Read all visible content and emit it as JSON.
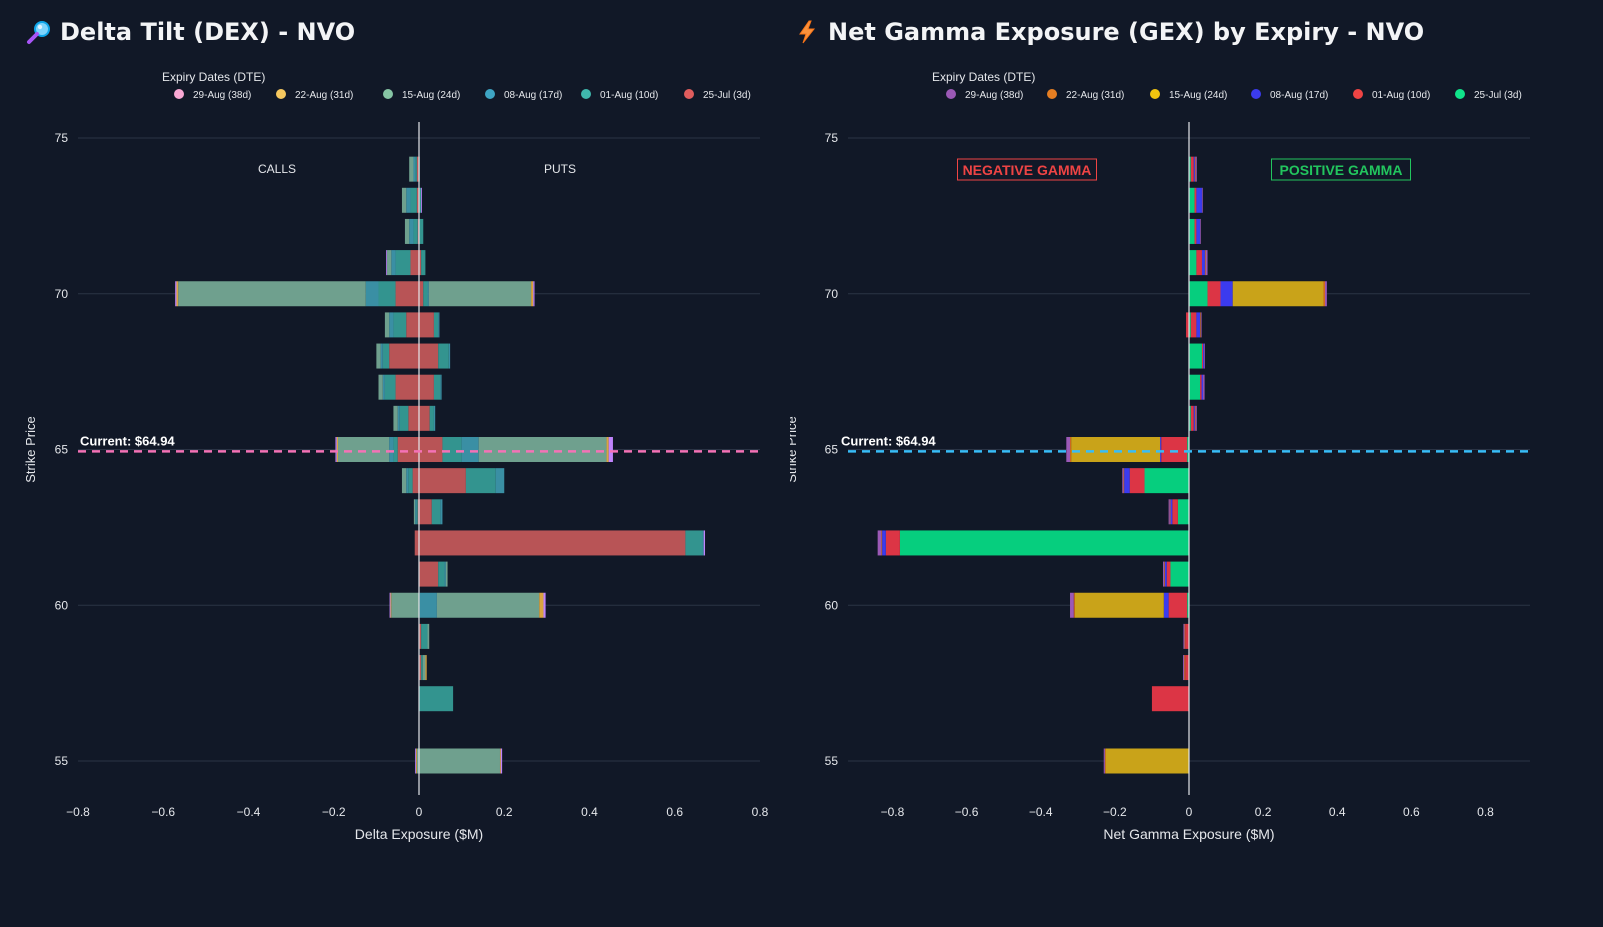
{
  "charts": [
    {
      "id": "dex",
      "title": "Delta Tilt (DEX) - NVO",
      "title_icon": "magnifier-icon",
      "legend_title": "Expiry Dates (DTE)",
      "xlabel": "Delta Exposure ($M)",
      "ylabel": "Strike Price",
      "current_label": "Current: $64.94",
      "current_price": 64.94,
      "current_line_color": "#f472b6",
      "left_annotation": "CALLS",
      "right_annotation": "PUTS"
    },
    {
      "id": "gex",
      "title": "Net Gamma Exposure (GEX) by Expiry - NVO",
      "title_icon": "lightning-icon",
      "legend_title": "Expiry Dates (DTE)",
      "xlabel": "Net Gamma Exposure ($M)",
      "ylabel": "Strike Price",
      "current_label": "Current: $64.94",
      "current_price": 64.94,
      "current_line_color": "#38bdf8",
      "left_annotation": "NEGATIVE GAMMA",
      "right_annotation": "POSITIVE GAMMA",
      "left_annotation_color": "#ef4444",
      "right_annotation_color": "#22c55e"
    }
  ],
  "chart_data": [
    {
      "type": "bar",
      "orientation": "horizontal",
      "stacked": true,
      "title": "Delta Tilt (DEX) - NVO",
      "xlabel": "Delta Exposure ($M)",
      "ylabel": "Strike Price",
      "xlim": [
        -0.8,
        0.8
      ],
      "xticks": [
        -0.8,
        -0.6,
        -0.4,
        -0.2,
        0,
        0.2,
        0.4,
        0.6,
        0.8
      ],
      "xtick_labels": [
        "−0.8",
        "−0.6",
        "−0.4",
        "−0.2",
        "0",
        "0.2",
        "0.4",
        "0.6",
        "0.8"
      ],
      "ylim": [
        54,
        76
      ],
      "yticks": [
        55,
        60,
        65,
        70,
        75
      ],
      "strikes": [
        74,
        73,
        72,
        71,
        70,
        69,
        68,
        67,
        66,
        65,
        64,
        63,
        62,
        61,
        60,
        59,
        58,
        57,
        55
      ],
      "series": [
        {
          "name": "29-Aug (38d)",
          "color": "#f9a8d4",
          "bar_color": "#c084fc",
          "neg": [
            0,
            0,
            0,
            0.002,
            0.003,
            0,
            0,
            0,
            0,
            0.003,
            0,
            0,
            0,
            0,
            0.002,
            0,
            0,
            0,
            0.002
          ],
          "pos": [
            0,
            0.002,
            0,
            0,
            0.003,
            0,
            0,
            0,
            0,
            0.01,
            0,
            0,
            0.003,
            0,
            0.005,
            0,
            0,
            0,
            0.003
          ]
        },
        {
          "name": "22-Aug (31d)",
          "color": "#f6c85f",
          "bar_color": "#d9a441",
          "neg": [
            0,
            0,
            0,
            0,
            0.004,
            0,
            0,
            0,
            0,
            0.003,
            0,
            0,
            0,
            0,
            0.002,
            0,
            0,
            0,
            0.002
          ],
          "pos": [
            0,
            0,
            0,
            0,
            0.005,
            0,
            0,
            0,
            0,
            0.005,
            0,
            0,
            0,
            0,
            0.01,
            0,
            0.003,
            0,
            0.002
          ]
        },
        {
          "name": "15-Aug (24d)",
          "color": "#86c5a4",
          "bar_color": "#6fa08e",
          "neg": [
            0.01,
            0.01,
            0.01,
            0.01,
            0.44,
            0.01,
            0.01,
            0.01,
            0.01,
            0.12,
            0.01,
            0.003,
            0,
            0,
            0.065,
            0,
            0,
            0,
            0.005
          ],
          "pos": [
            0,
            0,
            0,
            0,
            0.24,
            0,
            0,
            0,
            0,
            0.3,
            0,
            0,
            0,
            0.004,
            0.24,
            0.004,
            0.006,
            0,
            0.19
          ]
        },
        {
          "name": "08-Aug (17d)",
          "color": "#3ea5c4",
          "bar_color": "#3a8fa4",
          "neg": [
            0.005,
            0.01,
            0.01,
            0.01,
            0.03,
            0.01,
            0.005,
            0.005,
            0.005,
            0.01,
            0.005,
            0.003,
            0,
            0,
            0,
            0,
            0,
            0,
            0
          ],
          "pos": [
            0,
            0,
            0,
            0,
            0.003,
            0.003,
            0.003,
            0.003,
            0.003,
            0.04,
            0.02,
            0.005,
            0.003,
            0.003,
            0.04,
            0,
            0,
            0,
            0
          ]
        },
        {
          "name": "01-Aug (10d)",
          "color": "#3fb8ad",
          "bar_color": "#33948f",
          "neg": [
            0.003,
            0.015,
            0.01,
            0.035,
            0.04,
            0.03,
            0.015,
            0.025,
            0.02,
            0.01,
            0.01,
            0.003,
            0,
            0,
            0,
            0,
            0,
            0,
            0
          ],
          "pos": [
            0.002,
            0.005,
            0.01,
            0.01,
            0.01,
            0.01,
            0.025,
            0.015,
            0.01,
            0.045,
            0.07,
            0.02,
            0.04,
            0.015,
            0.002,
            0.015,
            0.004,
            0.08,
            0
          ]
        },
        {
          "name": "25-Jul (3d)",
          "color": "#e05d5d",
          "bar_color": "#b85456",
          "neg": [
            0.005,
            0.005,
            0.003,
            0.02,
            0.055,
            0.03,
            0.07,
            0.055,
            0.025,
            0.05,
            0.015,
            0.003,
            0.01,
            0,
            0,
            0,
            0,
            0,
            0
          ],
          "pos": [
            0,
            0,
            0,
            0.005,
            0.01,
            0.035,
            0.045,
            0.035,
            0.025,
            0.055,
            0.11,
            0.03,
            0.625,
            0.045,
            0,
            0.005,
            0.005,
            0,
            0
          ]
        }
      ]
    },
    {
      "type": "bar",
      "orientation": "horizontal",
      "stacked": true,
      "title": "Net Gamma Exposure (GEX) by Expiry - NVO",
      "xlabel": "Net Gamma Exposure ($M)",
      "ylabel": "Strike Price",
      "xlim": [
        -0.92,
        0.92
      ],
      "xticks": [
        -0.8,
        -0.6,
        -0.4,
        -0.2,
        0,
        0.2,
        0.4,
        0.6,
        0.8
      ],
      "xtick_labels": [
        "−0.8",
        "−0.6",
        "−0.4",
        "−0.2",
        "0",
        "0.2",
        "0.4",
        "0.6",
        "0.8"
      ],
      "ylim": [
        54,
        76
      ],
      "yticks": [
        55,
        60,
        65,
        70,
        75
      ],
      "strikes": [
        74,
        73,
        72,
        71,
        70,
        69,
        68,
        67,
        66,
        65,
        64,
        63,
        62,
        61,
        60,
        59,
        58,
        57,
        55
      ],
      "series": [
        {
          "name": "29-Aug (38d)",
          "color": "#9b59b6",
          "bar_color": "#9b59b6",
          "neg": [
            0,
            0,
            0,
            0,
            0,
            0,
            0,
            0,
            0,
            0.01,
            0.003,
            0.003,
            0.01,
            0.003,
            0.01,
            0.003,
            0.003,
            0,
            0.003
          ],
          "pos": [
            0.003,
            0.002,
            0.002,
            0.005,
            0.005,
            0.002,
            0.002,
            0.004,
            0.003,
            0,
            0,
            0,
            0,
            0,
            0,
            0,
            0,
            0,
            0
          ]
        },
        {
          "name": "22-Aug (31d)",
          "color": "#e67e22",
          "bar_color": "#d2691e",
          "neg": [
            0,
            0,
            0,
            0,
            0,
            0,
            0,
            0,
            0,
            0.003,
            0.002,
            0.002,
            0.002,
            0.002,
            0.003,
            0.002,
            0.003,
            0,
            0.002
          ],
          "pos": [
            0.002,
            0,
            0,
            0.002,
            0.004,
            0.002,
            0,
            0,
            0.002,
            0,
            0,
            0,
            0,
            0,
            0,
            0,
            0,
            0,
            0
          ]
        },
        {
          "name": "15-Aug (24d)",
          "color": "#f1c40f",
          "bar_color": "#c9a319",
          "neg": [
            0,
            0,
            0,
            0,
            0,
            0,
            0,
            0,
            0,
            0.24,
            0,
            0,
            0,
            0,
            0.24,
            0,
            0,
            0,
            0.225
          ],
          "pos": [
            0,
            0,
            0,
            0,
            0.245,
            0,
            0,
            0,
            0,
            0,
            0,
            0,
            0,
            0,
            0,
            0,
            0,
            0,
            0
          ]
        },
        {
          "name": "08-Aug (17d)",
          "color": "#3b3bef",
          "bar_color": "#3b3bef",
          "neg": [
            0,
            0,
            0,
            0,
            0,
            0,
            0,
            0,
            0,
            0.003,
            0.015,
            0.005,
            0.01,
            0.005,
            0.013,
            0,
            0,
            0,
            0
          ],
          "pos": [
            0.003,
            0.015,
            0.01,
            0.008,
            0.033,
            0.01,
            0.003,
            0.004,
            0.003,
            0,
            0,
            0,
            0,
            0,
            0,
            0,
            0,
            0,
            0
          ]
        },
        {
          "name": "01-Aug (10d)",
          "color": "#ef4444",
          "bar_color": "#dc3545",
          "neg": [
            0,
            0,
            0,
            0,
            0,
            0.008,
            0,
            0,
            0,
            0.07,
            0.04,
            0.015,
            0.038,
            0.01,
            0.05,
            0.01,
            0.01,
            0.1,
            0
          ],
          "pos": [
            0.008,
            0.005,
            0.005,
            0.015,
            0.035,
            0.015,
            0.003,
            0.004,
            0.008,
            0,
            0,
            0,
            0,
            0,
            0,
            0,
            0,
            0,
            0
          ]
        },
        {
          "name": "25-Jul (3d)",
          "color": "#10e48a",
          "bar_color": "#06ce7e",
          "neg": [
            0,
            0,
            0,
            0,
            0,
            0,
            0,
            0,
            0,
            0.005,
            0.12,
            0.03,
            0.78,
            0.05,
            0.005,
            0,
            0,
            0,
            0
          ],
          "pos": [
            0.005,
            0.015,
            0.015,
            0.02,
            0.05,
            0.005,
            0.035,
            0.03,
            0.005,
            0,
            0,
            0,
            0,
            0,
            0,
            0,
            0,
            0,
            0
          ]
        }
      ]
    }
  ]
}
